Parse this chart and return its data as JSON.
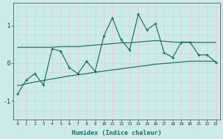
{
  "x": [
    0,
    1,
    2,
    3,
    4,
    5,
    6,
    7,
    8,
    9,
    10,
    11,
    12,
    13,
    14,
    15,
    16,
    17,
    18,
    19,
    20,
    21,
    22,
    23
  ],
  "y_main": [
    -0.82,
    -0.45,
    -0.28,
    -0.58,
    0.38,
    0.32,
    -0.12,
    -0.28,
    0.05,
    -0.22,
    0.72,
    1.2,
    0.62,
    0.35,
    1.3,
    0.88,
    1.05,
    0.28,
    0.15,
    0.56,
    0.56,
    0.22,
    0.22,
    0.02
  ],
  "y_upper": [
    0.42,
    0.42,
    0.42,
    0.42,
    0.42,
    0.44,
    0.44,
    0.44,
    0.46,
    0.48,
    0.5,
    0.52,
    0.54,
    0.54,
    0.56,
    0.58,
    0.6,
    0.58,
    0.56,
    0.55,
    0.55,
    0.55,
    0.55,
    0.55
  ],
  "y_lower": [
    -0.6,
    -0.55,
    -0.5,
    -0.46,
    -0.42,
    -0.38,
    -0.34,
    -0.31,
    -0.28,
    -0.24,
    -0.21,
    -0.18,
    -0.15,
    -0.12,
    -0.09,
    -0.06,
    -0.03,
    -0.01,
    0.01,
    0.03,
    0.05,
    0.05,
    0.05,
    0.05
  ],
  "line_color": "#1a6e6a",
  "bg_color": "#cceae8",
  "grid_color_h": "#b8dedd",
  "grid_color_v": "#e8c8c8",
  "xlabel": "Humidex (Indice chaleur)",
  "xlim": [
    -0.5,
    23.5
  ],
  "ylim": [
    -1.5,
    1.6
  ],
  "yticks": [
    -1,
    0,
    1
  ],
  "xticks": [
    0,
    1,
    2,
    3,
    4,
    5,
    6,
    7,
    8,
    9,
    10,
    11,
    12,
    13,
    14,
    15,
    16,
    17,
    18,
    19,
    20,
    21,
    22,
    23
  ]
}
